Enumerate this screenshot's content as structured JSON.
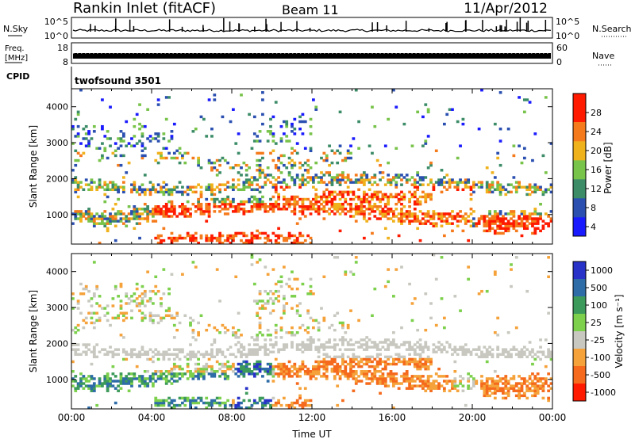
{
  "header": {
    "station": "Rankin Inlet (fitACF)",
    "beam": "Beam 11",
    "date": "11/Apr/2012"
  },
  "panels": {
    "nsky": {
      "left_label": "N.Sky",
      "right_label": "N.Search",
      "left_ticks": [
        "10^5",
        "10^0"
      ],
      "right_ticks": [
        "10^5",
        "10^0"
      ]
    },
    "freq": {
      "left_label_line1": "Freq.",
      "left_label_line2": "[MHz]",
      "right_label": "Nave",
      "left_ticks": [
        "18",
        "8"
      ],
      "right_ticks": [
        "60",
        "0"
      ]
    },
    "cpid": {
      "label": "CPID",
      "program": "twofsound 3501"
    }
  },
  "chart_data": [
    {
      "type": "heatmap",
      "quantity": "power",
      "ylabel": "Slant Range [km]",
      "xlabel": "Time UT",
      "ylim": [
        180,
        4500
      ],
      "xlim": [
        0,
        24
      ],
      "y_ticks": [
        "1000",
        "2000",
        "3000",
        "4000"
      ],
      "colorbar_label": "Power [dB]",
      "colorbar_ticks": [
        "4",
        "8",
        "12",
        "16",
        "20",
        "24",
        "28"
      ],
      "colorbar_colors": [
        "#1a1aff",
        "#2a4fb0",
        "#3c8c68",
        "#78c34a",
        "#f0b21c",
        "#f57a1c",
        "#ff1a00"
      ]
    },
    {
      "type": "heatmap",
      "quantity": "velocity",
      "ylabel": "Slant Range [km]",
      "xlabel": "Time UT",
      "ylim": [
        180,
        4500
      ],
      "xlim": [
        0,
        24
      ],
      "y_ticks": [
        "1000",
        "2000",
        "3000",
        "4000"
      ],
      "x_ticks": [
        "00:00",
        "04:00",
        "08:00",
        "12:00",
        "16:00",
        "20:00",
        "00:00"
      ],
      "colorbar_label": "Velocity [m s⁻¹]",
      "colorbar_ticks": [
        "1000",
        "500",
        "100",
        "25",
        "-25",
        "-100",
        "-500",
        "-1000"
      ],
      "colorbar_colors": [
        "#2832c8",
        "#2e6ca8",
        "#3c9a5a",
        "#7cd04c",
        "#c8c8c0",
        "#f5a23a",
        "#f56a1c",
        "#ff1a00"
      ]
    }
  ]
}
